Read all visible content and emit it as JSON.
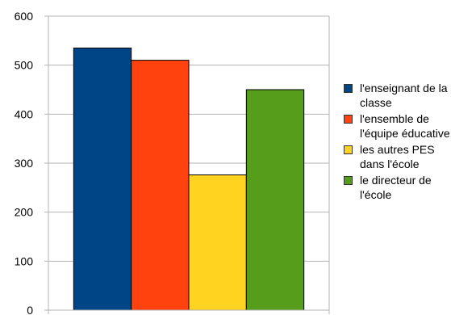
{
  "chart_data": {
    "type": "bar",
    "categories": [
      ""
    ],
    "series": [
      {
        "name": "l'enseignant de la classe",
        "values": [
          535
        ],
        "color": "#004586"
      },
      {
        "name": "l'ensemble de l'équipe éducative",
        "values": [
          510
        ],
        "color": "#ff420e"
      },
      {
        "name": "les autres PES dans l'école",
        "values": [
          276
        ],
        "color": "#ffd320"
      },
      {
        "name": "le directeur de l'école",
        "values": [
          450
        ],
        "color": "#579d1c"
      }
    ],
    "ylim": [
      0,
      600
    ],
    "yticks": [
      "0",
      "100",
      "200",
      "300",
      "400",
      "500",
      "600"
    ],
    "title": "",
    "xlabel": "",
    "ylabel": "",
    "grid": true,
    "legend_position": "right"
  }
}
